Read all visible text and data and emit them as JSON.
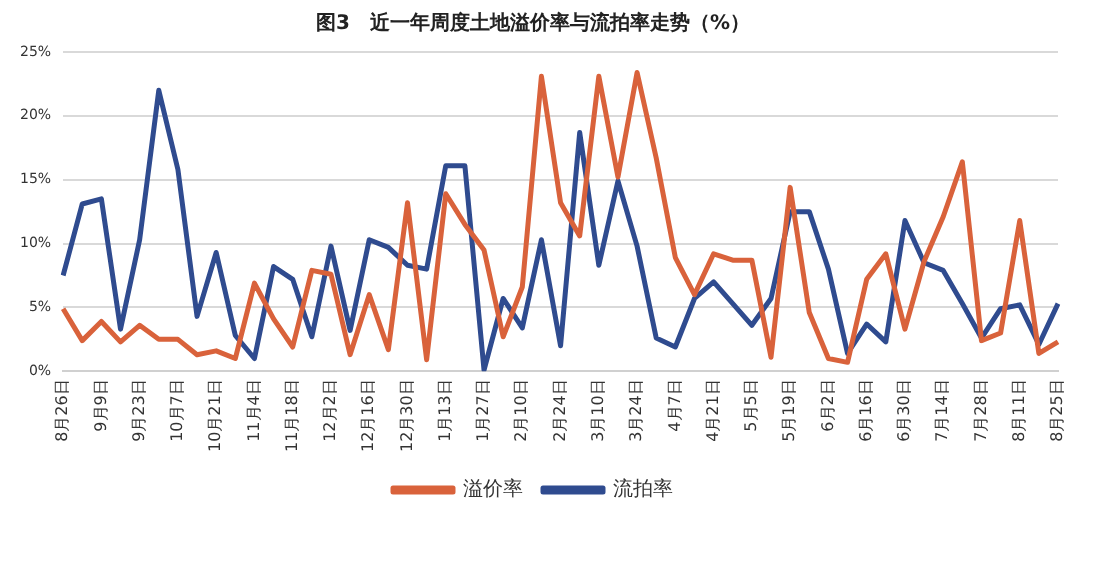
{
  "chart_data": {
    "type": "line",
    "title": "图3　近一年周度土地溢价率与流拍率走势（%）",
    "categories": [
      "8月26日",
      null,
      "9月9日",
      null,
      "9月23日",
      null,
      "10月7日",
      null,
      "10月21日",
      null,
      "11月4日",
      null,
      "11月18日",
      null,
      "12月2日",
      null,
      "12月16日",
      null,
      "12月30日",
      null,
      "1月13日",
      null,
      "1月27日",
      null,
      "2月10日",
      null,
      "2月24日",
      null,
      "3月10日",
      null,
      "3月24日",
      null,
      "4月7日",
      null,
      "4月21日",
      null,
      "5月5日",
      null,
      "5月19日",
      null,
      "6月2日",
      null,
      "6月16日",
      null,
      "6月30日",
      null,
      "7月14日",
      null,
      "7月28日",
      null,
      "8月11日",
      null,
      "8月25日"
    ],
    "series": [
      {
        "name": "溢价率",
        "color": "#d9623b",
        "values": [
          4.9,
          2.4,
          3.9,
          2.3,
          3.6,
          2.5,
          2.5,
          1.3,
          1.6,
          1.0,
          6.9,
          4.1,
          1.9,
          7.9,
          7.6,
          1.3,
          6.0,
          1.7,
          13.2,
          0.9,
          13.9,
          11.5,
          9.5,
          2.7,
          6.6,
          23.1,
          13.2,
          10.6,
          23.1,
          15.2,
          23.4,
          16.7,
          8.9,
          6.0,
          9.2,
          8.7,
          8.7,
          1.1,
          14.4,
          4.6,
          1.0,
          0.7,
          7.2,
          9.2,
          3.3,
          8.6,
          12.1,
          16.4,
          2.4,
          3.0,
          11.8,
          1.4,
          2.3
        ]
      },
      {
        "name": "流拍率",
        "color": "#2f4b8f",
        "values": [
          7.5,
          13.1,
          13.5,
          3.3,
          10.3,
          22.0,
          15.8,
          4.3,
          9.3,
          2.8,
          1.0,
          8.2,
          7.2,
          2.7,
          9.8,
          3.2,
          10.3,
          9.7,
          8.3,
          8.0,
          16.1,
          16.1,
          0.1,
          5.7,
          3.4,
          10.3,
          2.0,
          18.7,
          8.3,
          14.9,
          9.8,
          2.6,
          1.9,
          5.7,
          7.0,
          5.3,
          3.6,
          5.7,
          12.5,
          12.5,
          8.0,
          1.4,
          3.7,
          2.3,
          11.8,
          8.5,
          7.9,
          5.3,
          2.6,
          4.9,
          5.2,
          2.1,
          5.3
        ]
      }
    ],
    "ylim": [
      0,
      25
    ],
    "yticks": [
      {
        "value": 0,
        "label": "0%"
      },
      {
        "value": 5,
        "label": "5%"
      },
      {
        "value": 10,
        "label": "10%"
      },
      {
        "value": 15,
        "label": "15%"
      },
      {
        "value": 20,
        "label": "20%"
      },
      {
        "value": 25,
        "label": "25%"
      }
    ],
    "grid": "y",
    "legend": "bottom",
    "marker": "none",
    "line_style": "solid"
  }
}
